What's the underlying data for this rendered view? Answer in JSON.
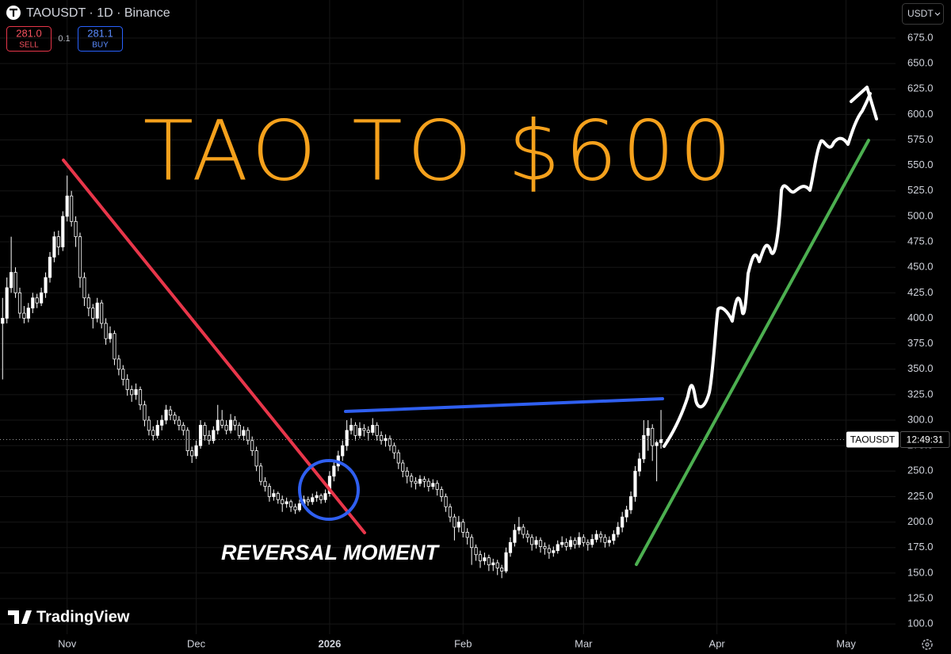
{
  "chart_data": {
    "type": "candlestick",
    "title": "TAOUSDT · 1D · Binance",
    "currency": "USDT",
    "sell": {
      "price": "281.0",
      "label": "SELL"
    },
    "spread": "0.1",
    "buy": {
      "price": "281.1",
      "label": "BUY"
    },
    "annotations": {
      "headline": "TAO TO $600",
      "caption": "REVERSAL MOMENT"
    },
    "price_label": {
      "symbol": "TAOUSDT",
      "countdown": "12:49:31"
    },
    "last_price": 281,
    "brand": "TradingView",
    "up_color": "#ffffff",
    "down_color": "#000000",
    "wick_color": "#ffffff",
    "grid": true,
    "xlim": [
      -0.6,
      207.5
    ],
    "ylim": [
      90,
      712.3
    ],
    "xticks": [
      {
        "value": 15,
        "label": "Nov"
      },
      {
        "value": 45,
        "label": "Dec"
      },
      {
        "value": 76,
        "label": "2026"
      },
      {
        "value": 107,
        "label": "Feb"
      },
      {
        "value": 135,
        "label": "Mar"
      },
      {
        "value": 166,
        "label": "Apr"
      },
      {
        "value": 196,
        "label": "May"
      }
    ],
    "yticks": [
      {
        "value": 100,
        "label": "100.0"
      },
      {
        "value": 125,
        "label": "125.0"
      },
      {
        "value": 150,
        "label": "150.0"
      },
      {
        "value": 175,
        "label": "175.0"
      },
      {
        "value": 200,
        "label": "200.0"
      },
      {
        "value": 225,
        "label": "225.0"
      },
      {
        "value": 250,
        "label": "250.0"
      },
      {
        "value": 275,
        "label": "275.0"
      },
      {
        "value": 300,
        "label": "300.0"
      },
      {
        "value": 325,
        "label": "325.0"
      },
      {
        "value": 350,
        "label": "350.0"
      },
      {
        "value": 375,
        "label": "375.0"
      },
      {
        "value": 400,
        "label": "400.0"
      },
      {
        "value": 425,
        "label": "425.0"
      },
      {
        "value": 450,
        "label": "450.0"
      },
      {
        "value": 475,
        "label": "475.0"
      },
      {
        "value": 500,
        "label": "500.0"
      },
      {
        "value": 525,
        "label": "525.0"
      },
      {
        "value": 550,
        "label": "550.0"
      },
      {
        "value": 575,
        "label": "575.0"
      },
      {
        "value": 600,
        "label": "600.0"
      },
      {
        "value": 625,
        "label": "625.0"
      },
      {
        "value": 650,
        "label": "650.0"
      },
      {
        "value": 675,
        "label": "675.0"
      }
    ],
    "x": [
      0,
      1,
      2,
      3,
      4,
      5,
      6,
      7,
      8,
      9,
      10,
      11,
      12,
      13,
      14,
      15,
      16,
      17,
      18,
      19,
      20,
      21,
      22,
      23,
      24,
      25,
      26,
      27,
      28,
      29,
      30,
      31,
      32,
      33,
      34,
      35,
      36,
      37,
      38,
      39,
      40,
      41,
      42,
      43,
      44,
      45,
      46,
      47,
      48,
      49,
      50,
      51,
      52,
      53,
      54,
      55,
      56,
      57,
      58,
      59,
      60,
      61,
      62,
      63,
      64,
      65,
      66,
      67,
      68,
      69,
      70,
      71,
      72,
      73,
      74,
      75,
      76,
      77,
      78,
      79,
      80,
      81,
      82,
      83,
      84,
      85,
      86,
      87,
      88,
      89,
      90,
      91,
      92,
      93,
      94,
      95,
      96,
      97,
      98,
      99,
      100,
      101,
      102,
      103,
      104,
      105,
      106,
      107,
      108,
      109,
      110,
      111,
      112,
      113,
      114,
      115,
      116,
      117,
      118,
      119,
      120,
      121,
      122,
      123,
      124,
      125,
      126,
      127,
      128,
      129,
      130,
      131,
      132,
      133,
      134,
      135,
      136,
      137,
      138,
      139,
      140,
      141,
      142,
      143,
      144,
      145,
      146,
      147,
      148,
      149,
      150,
      151,
      152,
      153
    ],
    "ohlc": [
      [
        395,
        420,
        340,
        400
      ],
      [
        400,
        440,
        395,
        430
      ],
      [
        430,
        480,
        425,
        445
      ],
      [
        445,
        450,
        420,
        425
      ],
      [
        425,
        430,
        400,
        405
      ],
      [
        405,
        412,
        395,
        400
      ],
      [
        400,
        415,
        396,
        410
      ],
      [
        410,
        425,
        405,
        420
      ],
      [
        420,
        424,
        410,
        415
      ],
      [
        415,
        430,
        412,
        425
      ],
      [
        425,
        445,
        420,
        440
      ],
      [
        440,
        465,
        435,
        460
      ],
      [
        460,
        485,
        455,
        480
      ],
      [
        480,
        486,
        462,
        470
      ],
      [
        470,
        505,
        466,
        500
      ],
      [
        500,
        540,
        495,
        520
      ],
      [
        520,
        525,
        490,
        495
      ],
      [
        495,
        500,
        470,
        480
      ],
      [
        480,
        484,
        430,
        440
      ],
      [
        440,
        445,
        412,
        420
      ],
      [
        420,
        424,
        402,
        410
      ],
      [
        410,
        414,
        390,
        400
      ],
      [
        400,
        420,
        396,
        415
      ],
      [
        415,
        418,
        390,
        395
      ],
      [
        395,
        400,
        374,
        380
      ],
      [
        380,
        392,
        376,
        385
      ],
      [
        385,
        388,
        354,
        360
      ],
      [
        360,
        364,
        344,
        350
      ],
      [
        350,
        354,
        334,
        340
      ],
      [
        340,
        345,
        324,
        330
      ],
      [
        330,
        334,
        318,
        325
      ],
      [
        325,
        336,
        320,
        330
      ],
      [
        330,
        333,
        310,
        315
      ],
      [
        315,
        319,
        294,
        300
      ],
      [
        300,
        304,
        285,
        290
      ],
      [
        290,
        294,
        280,
        285
      ],
      [
        285,
        300,
        282,
        295
      ],
      [
        295,
        305,
        290,
        300
      ],
      [
        300,
        315,
        296,
        310
      ],
      [
        310,
        314,
        300,
        305
      ],
      [
        305,
        308,
        296,
        300
      ],
      [
        300,
        304,
        290,
        295
      ],
      [
        295,
        298,
        285,
        290
      ],
      [
        290,
        293,
        265,
        270
      ],
      [
        270,
        274,
        258,
        265
      ],
      [
        265,
        280,
        262,
        275
      ],
      [
        275,
        300,
        272,
        295
      ],
      [
        295,
        298,
        280,
        285
      ],
      [
        285,
        290,
        276,
        280
      ],
      [
        280,
        294,
        277,
        290
      ],
      [
        290,
        315,
        286,
        300
      ],
      [
        300,
        310,
        292,
        295
      ],
      [
        295,
        300,
        286,
        290
      ],
      [
        290,
        306,
        287,
        300
      ],
      [
        300,
        304,
        290,
        295
      ],
      [
        295,
        298,
        282,
        285
      ],
      [
        285,
        294,
        280,
        290
      ],
      [
        290,
        293,
        276,
        280
      ],
      [
        280,
        284,
        265,
        270
      ],
      [
        270,
        274,
        250,
        255
      ],
      [
        255,
        258,
        236,
        240
      ],
      [
        240,
        244,
        230,
        235
      ],
      [
        235,
        238,
        220,
        225
      ],
      [
        225,
        232,
        221,
        228
      ],
      [
        228,
        230,
        218,
        222
      ],
      [
        222,
        226,
        210,
        218
      ],
      [
        218,
        224,
        214,
        220
      ],
      [
        220,
        222,
        210,
        215
      ],
      [
        215,
        218,
        208,
        212
      ],
      [
        212,
        222,
        210,
        218
      ],
      [
        218,
        226,
        215,
        222
      ],
      [
        222,
        225,
        216,
        220
      ],
      [
        220,
        228,
        217,
        224
      ],
      [
        224,
        230,
        220,
        226
      ],
      [
        226,
        228,
        218,
        222
      ],
      [
        222,
        232,
        219,
        228
      ],
      [
        228,
        250,
        225,
        245
      ],
      [
        245,
        260,
        240,
        255
      ],
      [
        255,
        270,
        250,
        265
      ],
      [
        265,
        280,
        260,
        275
      ],
      [
        275,
        300,
        270,
        290
      ],
      [
        290,
        302,
        286,
        295
      ],
      [
        295,
        298,
        280,
        285
      ],
      [
        285,
        298,
        282,
        292
      ],
      [
        292,
        296,
        284,
        290
      ],
      [
        290,
        294,
        280,
        288
      ],
      [
        288,
        302,
        285,
        295
      ],
      [
        295,
        298,
        280,
        285
      ],
      [
        285,
        289,
        276,
        280
      ],
      [
        280,
        286,
        274,
        282
      ],
      [
        282,
        285,
        270,
        275
      ],
      [
        275,
        278,
        262,
        268
      ],
      [
        268,
        271,
        252,
        258
      ],
      [
        258,
        261,
        244,
        250
      ],
      [
        250,
        254,
        238,
        245
      ],
      [
        245,
        248,
        234,
        240
      ],
      [
        240,
        244,
        232,
        238
      ],
      [
        238,
        246,
        235,
        242
      ],
      [
        242,
        245,
        234,
        240
      ],
      [
        240,
        243,
        230,
        235
      ],
      [
        235,
        242,
        232,
        238
      ],
      [
        238,
        241,
        226,
        232
      ],
      [
        232,
        235,
        220,
        225
      ],
      [
        225,
        228,
        210,
        215
      ],
      [
        215,
        218,
        200,
        205
      ],
      [
        205,
        208,
        182,
        195
      ],
      [
        195,
        206,
        190,
        200
      ],
      [
        200,
        203,
        185,
        190
      ],
      [
        190,
        194,
        178,
        185
      ],
      [
        185,
        188,
        158,
        175
      ],
      [
        175,
        178,
        162,
        168
      ],
      [
        168,
        172,
        155,
        162
      ],
      [
        162,
        170,
        158,
        165
      ],
      [
        165,
        168,
        152,
        158
      ],
      [
        158,
        164,
        152,
        160
      ],
      [
        160,
        163,
        148,
        155
      ],
      [
        155,
        158,
        145,
        152
      ],
      [
        152,
        175,
        150,
        170
      ],
      [
        170,
        185,
        166,
        180
      ],
      [
        180,
        198,
        176,
        192
      ],
      [
        192,
        205,
        188,
        195
      ],
      [
        195,
        198,
        184,
        188
      ],
      [
        188,
        192,
        180,
        185
      ],
      [
        185,
        188,
        172,
        178
      ],
      [
        178,
        186,
        174,
        182
      ],
      [
        182,
        185,
        170,
        176
      ],
      [
        176,
        180,
        168,
        174
      ],
      [
        174,
        178,
        164,
        170
      ],
      [
        170,
        176,
        166,
        172
      ],
      [
        172,
        182,
        169,
        178
      ],
      [
        178,
        186,
        175,
        180
      ],
      [
        180,
        184,
        172,
        176
      ],
      [
        176,
        186,
        173,
        182
      ],
      [
        182,
        185,
        174,
        178
      ],
      [
        178,
        190,
        175,
        185
      ],
      [
        185,
        188,
        176,
        180
      ],
      [
        180,
        183,
        172,
        178
      ],
      [
        178,
        188,
        175,
        183
      ],
      [
        183,
        192,
        180,
        188
      ],
      [
        188,
        191,
        180,
        185
      ],
      [
        185,
        188,
        175,
        180
      ],
      [
        180,
        186,
        176,
        182
      ],
      [
        182,
        192,
        178,
        188
      ],
      [
        188,
        200,
        185,
        195
      ],
      [
        195,
        210,
        190,
        205
      ],
      [
        205,
        216,
        200,
        212
      ],
      [
        212,
        230,
        208,
        225
      ],
      [
        225,
        255,
        220,
        250
      ],
      [
        250,
        268,
        245,
        262
      ],
      [
        262,
        300,
        258,
        285
      ],
      [
        285,
        300,
        270,
        292
      ],
      [
        292,
        296,
        260,
        275
      ],
      [
        275,
        280,
        240,
        278
      ],
      [
        278,
        310,
        272,
        281
      ]
    ]
  }
}
